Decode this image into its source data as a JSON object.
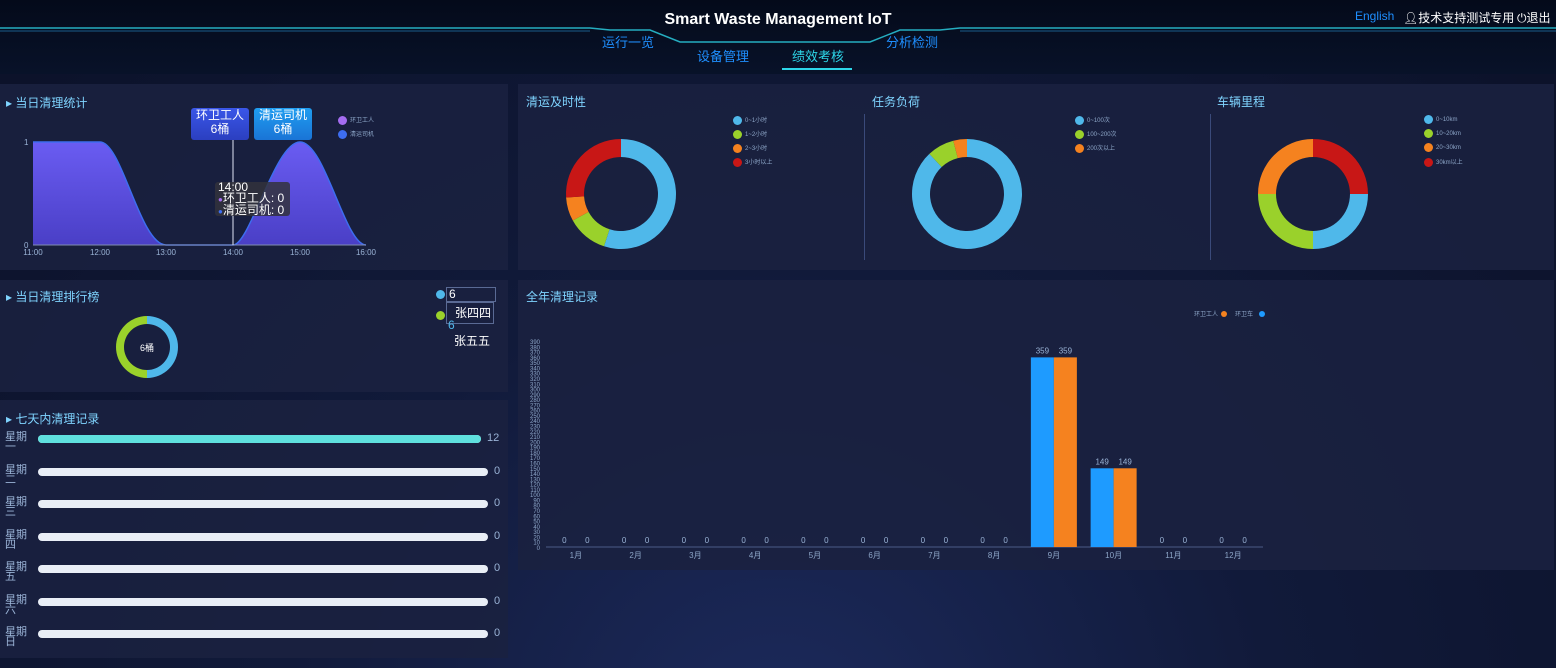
{
  "header": {
    "title": "Smart Waste Management IoT",
    "nav": {
      "overview": "运行一览",
      "devices": "设备管理",
      "performance": "绩效考核",
      "analysis": "分析检测"
    },
    "active_tab": "绩效考核",
    "language": "English",
    "user": "技术支持测试专用",
    "logout": "退出"
  },
  "daily_stats": {
    "title": "当日清理统计",
    "legend": [
      "环卫工人",
      "清运司机"
    ],
    "y_ticks": [
      "1",
      "0"
    ],
    "x_ticks": [
      "11:00",
      "12:00",
      "13:00",
      "14:00",
      "15:00",
      "16:00"
    ],
    "badges": [
      {
        "label": "环卫工人",
        "value": "6桶"
      },
      {
        "label": "清运司机",
        "value": "6桶"
      }
    ],
    "hover": {
      "time": "14:00",
      "line1": "环卫工人: 0",
      "line2": "清运司机: 0"
    }
  },
  "daily_rank": {
    "title": "当日清理排行榜",
    "donut_label": "6桶",
    "entries": [
      {
        "value": "6",
        "name": "张四四"
      },
      {
        "value": "6",
        "name": "张五五"
      }
    ]
  },
  "seven_days": {
    "title": "七天内清理记录",
    "rows": [
      {
        "day": "星期一",
        "value": 12,
        "max": 12
      },
      {
        "day": "星期二",
        "value": 0,
        "max": 12
      },
      {
        "day": "星期三",
        "value": 0,
        "max": 12
      },
      {
        "day": "星期四",
        "value": 0,
        "max": 12
      },
      {
        "day": "星期五",
        "value": 0,
        "max": 12
      },
      {
        "day": "星期六",
        "value": 0,
        "max": 12
      },
      {
        "day": "星期日",
        "value": 0,
        "max": 12
      }
    ]
  },
  "timeliness": {
    "title": "清运及时性",
    "legend": [
      "0~1小时",
      "1~2小时",
      "2~3小时",
      "3小时以上"
    ]
  },
  "task_load": {
    "title": "任务负荷",
    "legend": [
      "0~100次",
      "100~200次",
      "200次以上"
    ]
  },
  "mileage": {
    "title": "车辆里程",
    "legend": [
      "0~10km",
      "10~20km",
      "20~30km",
      "30km以上"
    ]
  },
  "yearly": {
    "title": "全年清理记录",
    "legend": [
      "环卫工人",
      "环卫车"
    ]
  },
  "colors": {
    "sky": "#4fb8ea",
    "green": "#9ad12b",
    "orange": "#f5821f",
    "red": "#c81716",
    "bar_blue": "#1e9bff",
    "bar_orange": "#f5821f",
    "area": "#5b4fdc",
    "cyan": "#2dd6e8"
  },
  "chart_data": [
    {
      "type": "area",
      "title": "当日清理统计",
      "x": [
        "11:00",
        "12:00",
        "13:00",
        "14:00",
        "15:00",
        "16:00"
      ],
      "series": [
        {
          "name": "环卫工人",
          "values": [
            1,
            1,
            0,
            0,
            1,
            0
          ]
        },
        {
          "name": "清运司机",
          "values": [
            1,
            1,
            0,
            0,
            1,
            0
          ]
        }
      ],
      "ylim": [
        0,
        1
      ]
    },
    {
      "type": "pie",
      "title": "清运及时性",
      "labels": [
        "0~1小时",
        "1~2小时",
        "2~3小时",
        "3小时以上"
      ],
      "values": [
        55,
        12,
        7,
        26
      ]
    },
    {
      "type": "pie",
      "title": "任务负荷",
      "labels": [
        "0~100次",
        "100~200次",
        "200次以上"
      ],
      "values": [
        88,
        8,
        4
      ]
    },
    {
      "type": "pie",
      "title": "车辆里程",
      "labels": [
        "0~10km",
        "10~20km",
        "20~30km",
        "30km以上"
      ],
      "values": [
        25,
        25,
        25,
        25
      ]
    },
    {
      "type": "pie",
      "title": "当日清理排行榜",
      "labels": [
        "张四四",
        "张五五"
      ],
      "values": [
        6,
        6
      ]
    },
    {
      "type": "bar",
      "title": "全年清理记录",
      "categories": [
        "1月",
        "2月",
        "3月",
        "4月",
        "5月",
        "6月",
        "7月",
        "8月",
        "9月",
        "10月",
        "11月",
        "12月"
      ],
      "series": [
        {
          "name": "环卫工人",
          "values": [
            0,
            0,
            0,
            0,
            0,
            0,
            0,
            0,
            359,
            149,
            0,
            0
          ]
        },
        {
          "name": "环卫车",
          "values": [
            0,
            0,
            0,
            0,
            0,
            0,
            0,
            0,
            359,
            149,
            0,
            0
          ]
        }
      ],
      "ylim": [
        0,
        390
      ],
      "y_ticks": [
        10,
        20,
        30,
        40,
        50,
        60,
        70,
        80,
        90,
        100,
        110,
        120,
        130,
        140,
        150,
        160,
        170,
        180,
        190,
        200,
        210,
        220,
        230,
        240,
        250,
        260,
        270,
        280,
        290,
        300,
        310,
        320,
        330,
        340,
        350,
        360,
        370,
        380,
        390
      ]
    }
  ]
}
